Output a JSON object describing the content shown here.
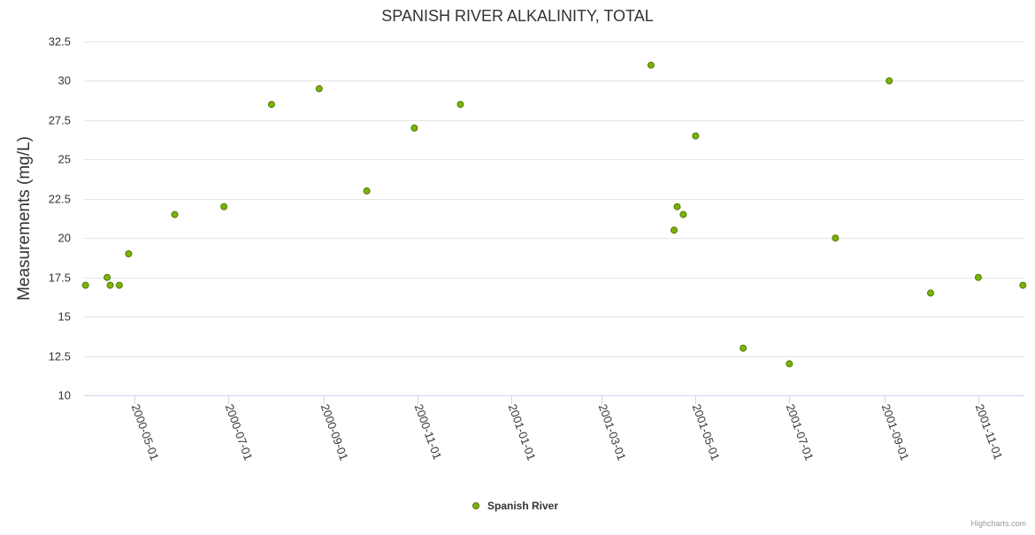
{
  "chart_data": {
    "type": "scatter",
    "title": "SPANISH RIVER ALKALINITY, TOTAL",
    "xlabel": "",
    "ylabel": "Measurements (mg/L)",
    "ylim": [
      10,
      32.5
    ],
    "yticks": [
      10,
      12.5,
      15,
      17.5,
      20,
      22.5,
      25,
      27.5,
      30,
      32.5
    ],
    "ytick_labels": [
      "10",
      "12.5",
      "15",
      "17.5",
      "20",
      "22.5",
      "25",
      "27.5",
      "30",
      "32.5"
    ],
    "xlim": [
      "2000-03-29",
      "2001-12-01"
    ],
    "xticks": [
      "2000-05-01",
      "2000-07-01",
      "2000-09-01",
      "2000-11-01",
      "2001-01-01",
      "2001-03-01",
      "2001-05-01",
      "2001-07-01",
      "2001-09-01",
      "2001-11-01"
    ],
    "grid": true,
    "legend_position": "bottom-center",
    "series": [
      {
        "name": "Spanish River",
        "color": "#7cb305",
        "points": [
          {
            "x": "2000-03-30",
            "y": 17
          },
          {
            "x": "2000-04-13",
            "y": 17.5
          },
          {
            "x": "2000-04-15",
            "y": 17
          },
          {
            "x": "2000-04-21",
            "y": 17
          },
          {
            "x": "2000-04-27",
            "y": 19
          },
          {
            "x": "2000-05-27",
            "y": 21.5
          },
          {
            "x": "2000-06-28",
            "y": 22
          },
          {
            "x": "2000-07-29",
            "y": 28.5
          },
          {
            "x": "2000-08-29",
            "y": 29.5
          },
          {
            "x": "2000-09-29",
            "y": 23
          },
          {
            "x": "2000-10-30",
            "y": 27
          },
          {
            "x": "2000-11-29",
            "y": 28.5
          },
          {
            "x": "2001-04-02",
            "y": 31
          },
          {
            "x": "2001-04-17",
            "y": 20.5
          },
          {
            "x": "2001-04-19",
            "y": 22
          },
          {
            "x": "2001-04-23",
            "y": 21.5
          },
          {
            "x": "2001-05-01",
            "y": 26.5
          },
          {
            "x": "2001-06-01",
            "y": 13
          },
          {
            "x": "2001-07-01",
            "y": 12
          },
          {
            "x": "2001-07-31",
            "y": 20
          },
          {
            "x": "2001-09-04",
            "y": 30
          },
          {
            "x": "2001-10-01",
            "y": 16.5
          },
          {
            "x": "2001-11-01",
            "y": 17.5
          },
          {
            "x": "2001-11-30",
            "y": 17
          }
        ]
      }
    ]
  },
  "credits": "Highcharts.com",
  "colors": {
    "grid": "#e6e6e6",
    "axis_line": "#ccd6eb",
    "text": "#333333",
    "point_stroke": "#4f7a0a"
  }
}
